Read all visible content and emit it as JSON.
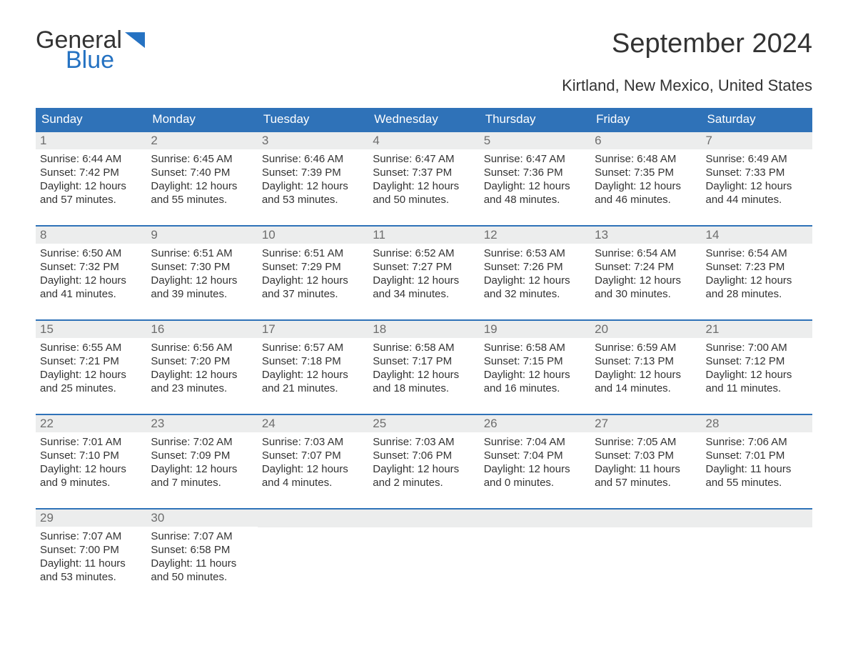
{
  "brand": {
    "general": "General",
    "blue": "Blue"
  },
  "title": "September 2024",
  "location": "Kirtland, New Mexico, United States",
  "colors": {
    "header_bg": "#2f72b8",
    "header_text": "#ffffff",
    "rule": "#2f72b8",
    "daynum_bg": "#eceded",
    "daynum_text": "#6d6d6d",
    "body_text": "#333333",
    "brand_blue": "#2572c2",
    "page_bg": "#ffffff"
  },
  "typography": {
    "title_fontsize": 38,
    "subtitle_fontsize": 22,
    "dow_fontsize": 17,
    "daynum_fontsize": 17,
    "body_fontsize": 15
  },
  "days_of_week": [
    "Sunday",
    "Monday",
    "Tuesday",
    "Wednesday",
    "Thursday",
    "Friday",
    "Saturday"
  ],
  "labels": {
    "sunrise": "Sunrise:",
    "sunset": "Sunset:",
    "daylight": "Daylight:"
  },
  "weeks": [
    [
      {
        "n": "1",
        "sr": "6:44 AM",
        "ss": "7:42 PM",
        "dl": "12 hours and 57 minutes."
      },
      {
        "n": "2",
        "sr": "6:45 AM",
        "ss": "7:40 PM",
        "dl": "12 hours and 55 minutes."
      },
      {
        "n": "3",
        "sr": "6:46 AM",
        "ss": "7:39 PM",
        "dl": "12 hours and 53 minutes."
      },
      {
        "n": "4",
        "sr": "6:47 AM",
        "ss": "7:37 PM",
        "dl": "12 hours and 50 minutes."
      },
      {
        "n": "5",
        "sr": "6:47 AM",
        "ss": "7:36 PM",
        "dl": "12 hours and 48 minutes."
      },
      {
        "n": "6",
        "sr": "6:48 AM",
        "ss": "7:35 PM",
        "dl": "12 hours and 46 minutes."
      },
      {
        "n": "7",
        "sr": "6:49 AM",
        "ss": "7:33 PM",
        "dl": "12 hours and 44 minutes."
      }
    ],
    [
      {
        "n": "8",
        "sr": "6:50 AM",
        "ss": "7:32 PM",
        "dl": "12 hours and 41 minutes."
      },
      {
        "n": "9",
        "sr": "6:51 AM",
        "ss": "7:30 PM",
        "dl": "12 hours and 39 minutes."
      },
      {
        "n": "10",
        "sr": "6:51 AM",
        "ss": "7:29 PM",
        "dl": "12 hours and 37 minutes."
      },
      {
        "n": "11",
        "sr": "6:52 AM",
        "ss": "7:27 PM",
        "dl": "12 hours and 34 minutes."
      },
      {
        "n": "12",
        "sr": "6:53 AM",
        "ss": "7:26 PM",
        "dl": "12 hours and 32 minutes."
      },
      {
        "n": "13",
        "sr": "6:54 AM",
        "ss": "7:24 PM",
        "dl": "12 hours and 30 minutes."
      },
      {
        "n": "14",
        "sr": "6:54 AM",
        "ss": "7:23 PM",
        "dl": "12 hours and 28 minutes."
      }
    ],
    [
      {
        "n": "15",
        "sr": "6:55 AM",
        "ss": "7:21 PM",
        "dl": "12 hours and 25 minutes."
      },
      {
        "n": "16",
        "sr": "6:56 AM",
        "ss": "7:20 PM",
        "dl": "12 hours and 23 minutes."
      },
      {
        "n": "17",
        "sr": "6:57 AM",
        "ss": "7:18 PM",
        "dl": "12 hours and 21 minutes."
      },
      {
        "n": "18",
        "sr": "6:58 AM",
        "ss": "7:17 PM",
        "dl": "12 hours and 18 minutes."
      },
      {
        "n": "19",
        "sr": "6:58 AM",
        "ss": "7:15 PM",
        "dl": "12 hours and 16 minutes."
      },
      {
        "n": "20",
        "sr": "6:59 AM",
        "ss": "7:13 PM",
        "dl": "12 hours and 14 minutes."
      },
      {
        "n": "21",
        "sr": "7:00 AM",
        "ss": "7:12 PM",
        "dl": "12 hours and 11 minutes."
      }
    ],
    [
      {
        "n": "22",
        "sr": "7:01 AM",
        "ss": "7:10 PM",
        "dl": "12 hours and 9 minutes."
      },
      {
        "n": "23",
        "sr": "7:02 AM",
        "ss": "7:09 PM",
        "dl": "12 hours and 7 minutes."
      },
      {
        "n": "24",
        "sr": "7:03 AM",
        "ss": "7:07 PM",
        "dl": "12 hours and 4 minutes."
      },
      {
        "n": "25",
        "sr": "7:03 AM",
        "ss": "7:06 PM",
        "dl": "12 hours and 2 minutes."
      },
      {
        "n": "26",
        "sr": "7:04 AM",
        "ss": "7:04 PM",
        "dl": "12 hours and 0 minutes."
      },
      {
        "n": "27",
        "sr": "7:05 AM",
        "ss": "7:03 PM",
        "dl": "11 hours and 57 minutes."
      },
      {
        "n": "28",
        "sr": "7:06 AM",
        "ss": "7:01 PM",
        "dl": "11 hours and 55 minutes."
      }
    ],
    [
      {
        "n": "29",
        "sr": "7:07 AM",
        "ss": "7:00 PM",
        "dl": "11 hours and 53 minutes."
      },
      {
        "n": "30",
        "sr": "7:07 AM",
        "ss": "6:58 PM",
        "dl": "11 hours and 50 minutes."
      },
      null,
      null,
      null,
      null,
      null
    ]
  ]
}
